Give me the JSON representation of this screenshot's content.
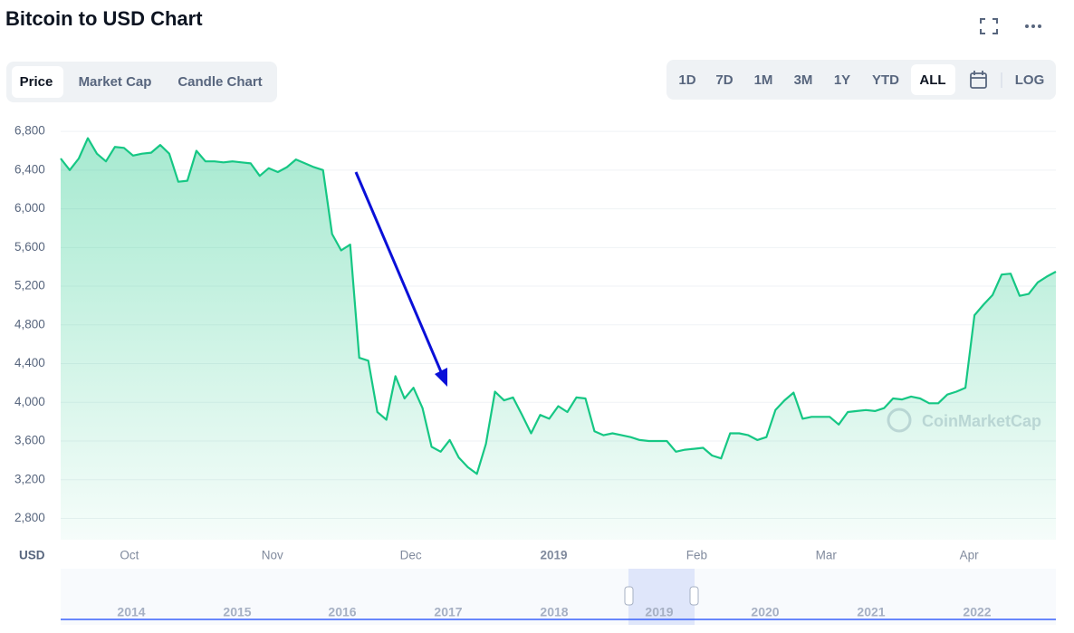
{
  "header": {
    "title": "Bitcoin to USD Chart"
  },
  "tabs": [
    "Price",
    "Market Cap",
    "Candle Chart"
  ],
  "ranges": [
    "1D",
    "7D",
    "1M",
    "3M",
    "1Y",
    "YTD",
    "ALL",
    "LOG"
  ],
  "chart_data": {
    "type": "area",
    "currency": "USD",
    "watermark": "CoinMarketCap",
    "color": "#16c784",
    "grid": true,
    "xlim": [
      0,
      110
    ],
    "xticks": [
      {
        "value": 7.6,
        "label": "Oct"
      },
      {
        "value": 23.4,
        "label": "Nov"
      },
      {
        "value": 38.7,
        "label": "Dec"
      },
      {
        "value": 54.5,
        "label": "2019"
      },
      {
        "value": 70.3,
        "label": "Feb"
      },
      {
        "value": 84.6,
        "label": "Mar"
      },
      {
        "value": 100.4,
        "label": "Apr"
      }
    ],
    "ylim": [
      2580,
      6960
    ],
    "yticks": [
      {
        "value": 2800,
        "label": "2,800"
      },
      {
        "value": 3200,
        "label": "3,200"
      },
      {
        "value": 3600,
        "label": "3,600"
      },
      {
        "value": 4000,
        "label": "4,000"
      },
      {
        "value": 4400,
        "label": "4,400"
      },
      {
        "value": 4800,
        "label": "4,800"
      },
      {
        "value": 5200,
        "label": "5,200"
      },
      {
        "value": 5600,
        "label": "5,600"
      },
      {
        "value": 6000,
        "label": "6,000"
      },
      {
        "value": 6400,
        "label": "6,400"
      },
      {
        "value": 6800,
        "label": "6,800"
      }
    ],
    "values": [
      6520,
      6400,
      6520,
      6730,
      6570,
      6490,
      6640,
      6630,
      6550,
      6570,
      6580,
      6660,
      6570,
      6280,
      6290,
      6600,
      6490,
      6490,
      6480,
      6490,
      6480,
      6470,
      6340,
      6420,
      6380,
      6430,
      6510,
      6470,
      6430,
      6400,
      5740,
      5570,
      5630,
      4460,
      4430,
      3900,
      3820,
      4270,
      4040,
      4150,
      3940,
      3540,
      3490,
      3610,
      3430,
      3330,
      3260,
      3570,
      4110,
      4020,
      4050,
      3870,
      3680,
      3870,
      3830,
      3960,
      3900,
      4050,
      4040,
      3700,
      3660,
      3680,
      3660,
      3640,
      3610,
      3600,
      3600,
      3600,
      3490,
      3510,
      3520,
      3530,
      3450,
      3420,
      3680,
      3680,
      3660,
      3610,
      3640,
      3920,
      4020,
      4100,
      3830,
      3850,
      3850,
      3850,
      3770,
      3900,
      3910,
      3920,
      3910,
      3940,
      4040,
      4030,
      4060,
      4040,
      3990,
      3990,
      4080,
      4110,
      4150,
      4900,
      5010,
      5110,
      5320,
      5330,
      5100,
      5120,
      5240,
      5300,
      5350
    ],
    "navigator_years": [
      "2014",
      "2015",
      "2016",
      "2017",
      "2018",
      "2019",
      "2020",
      "2021",
      "2022"
    ]
  }
}
